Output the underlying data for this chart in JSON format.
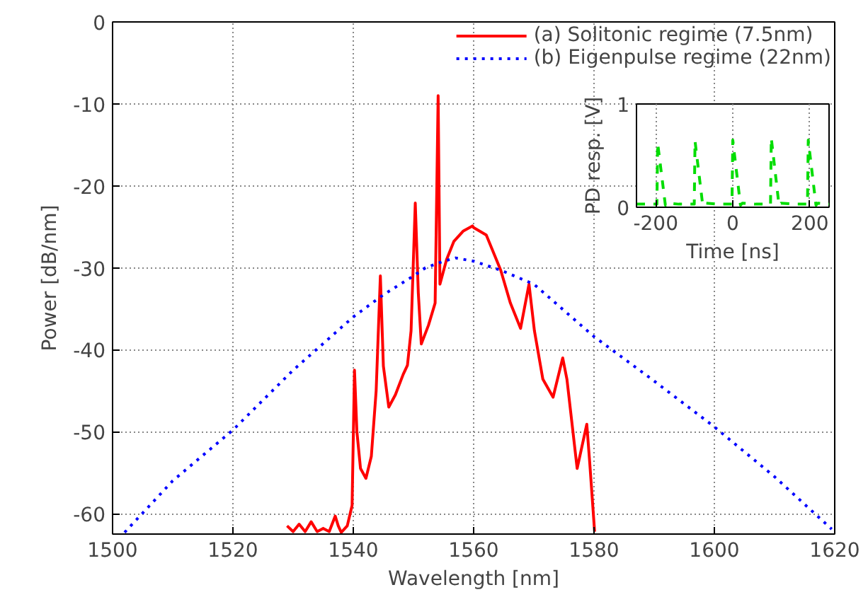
{
  "chart_data": [
    {
      "type": "line",
      "xlabel": "Wavelength [nm]",
      "ylabel": "Power [dB/nm]",
      "xlim": [
        1500,
        1620
      ],
      "ylim": [
        -62.5,
        0
      ],
      "xticks": [
        1500,
        1520,
        1540,
        1560,
        1580,
        1600,
        1620
      ],
      "yticks": [
        -60,
        -50,
        -40,
        -30,
        -20,
        -10,
        0
      ],
      "grid": true,
      "legend": "top right",
      "series": [
        {
          "name": "(a) Solitonic regime (7.5nm)",
          "color": "#ff0000",
          "line_style": "solid",
          "x": [
            1529,
            1530,
            1531,
            1532,
            1533,
            1534,
            1535,
            1536,
            1537,
            1537.5,
            1538,
            1539,
            1539.8,
            1540.2,
            1540.6,
            1541.2,
            1542.1,
            1543,
            1543.8,
            1544.5,
            1545,
            1545.9,
            1547,
            1548.3,
            1549,
            1549.6,
            1550.3,
            1550.8,
            1551.3,
            1552.5,
            1553.6,
            1554.1,
            1554.4,
            1555.5,
            1556.7,
            1558.3,
            1559.8,
            1560,
            1562.1,
            1564.5,
            1566.1,
            1567.8,
            1569.2,
            1570.1,
            1571.5,
            1573.2,
            1574.8,
            1575.5,
            1577.2,
            1578.8,
            1579.3,
            1580.1
          ],
          "values": [
            -61.5,
            -62.2,
            -61.3,
            -62.2,
            -61,
            -62.2,
            -61.8,
            -62.2,
            -60.3,
            -61.5,
            -62.3,
            -61.5,
            -59,
            -42.5,
            -50,
            -54.5,
            -55.7,
            -53,
            -45,
            -31,
            -42,
            -47,
            -45.5,
            -43,
            -41.9,
            -37.7,
            -22.1,
            -33,
            -39.3,
            -37,
            -34.3,
            -9,
            -32,
            -29,
            -26.8,
            -25.5,
            -24.9,
            -25.1,
            -26,
            -30.3,
            -34.3,
            -37.4,
            -32,
            -37.7,
            -43.6,
            -45.8,
            -41,
            -43.6,
            -54.5,
            -49.1,
            -53.9,
            -62.2
          ]
        },
        {
          "name": "(b) Eigenpulse regime (22nm)",
          "color": "#0000ff",
          "line_style": "dotted",
          "x": [
            1502,
            1510,
            1520,
            1530,
            1540,
            1545,
            1550,
            1552,
            1555,
            1557,
            1560,
            1564.5,
            1570,
            1580,
            1589.6,
            1599.8,
            1610,
            1619.5
          ],
          "values": [
            -62.3,
            -56,
            -49.8,
            -42.5,
            -36,
            -33.3,
            -31,
            -30,
            -29.2,
            -28.8,
            -29.2,
            -30.3,
            -32,
            -38.4,
            -43.6,
            -49.3,
            -55.5,
            -61.9
          ]
        }
      ]
    },
    {
      "type": "line",
      "xlabel": "Time [ns]",
      "ylabel": "PD resp. [V]",
      "xlim": [
        -250,
        250
      ],
      "ylim": [
        0,
        1
      ],
      "xticks": [
        -200,
        0,
        200
      ],
      "yticks": [
        0,
        1
      ],
      "grid": "x",
      "series": [
        {
          "color": "#00dd00",
          "line_style": "dashed",
          "x": [
            -250,
            -230,
            -200,
            -197,
            -195,
            -175,
            -170,
            -140,
            -120,
            -100,
            -98,
            -78,
            -73,
            -40,
            -20,
            -2,
            0,
            20,
            25,
            60,
            80,
            98,
            100,
            120,
            125,
            160,
            180,
            194,
            196,
            216,
            221,
            250
          ],
          "values": [
            0.03,
            0.03,
            0.03,
            0.03,
            0.62,
            0.02,
            0.04,
            0.03,
            0.03,
            0.03,
            0.64,
            0.02,
            0.04,
            0.03,
            0.03,
            0.03,
            0.65,
            0.02,
            0.04,
            0.03,
            0.03,
            0.03,
            0.67,
            0.02,
            0.04,
            0.03,
            0.03,
            0.03,
            0.65,
            0.02,
            0.04,
            0.03
          ]
        }
      ]
    }
  ]
}
